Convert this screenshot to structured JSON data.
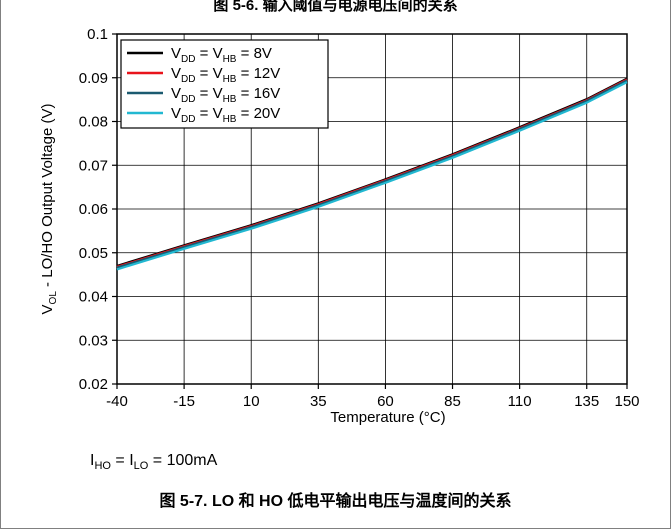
{
  "page": {
    "top_title": "图 5-6. 输入阈值与电源电压间的关系",
    "conditions": {
      "i1": "I",
      "s1": "HO",
      "eq": " = ",
      "i2": "I",
      "s2": "LO",
      "val": " = 100mA"
    },
    "caption": "图 5-7. LO 和 HO 低电平输出电压与温度间的关系"
  },
  "colors": {
    "axis": "#000000",
    "grid": "#000000",
    "series": [
      "#000000",
      "#e8141c",
      "#1b5a70",
      "#22b8d1"
    ]
  },
  "chart_data": {
    "type": "line",
    "xlabel": "Temperature (°C)",
    "ylabel_parts": [
      "V",
      "OL",
      " - LO/HO Output Voltage (V)"
    ],
    "xlim": [
      -40,
      150
    ],
    "ylim": [
      0.02,
      0.1
    ],
    "x_ticks": [
      -40,
      -15,
      10,
      35,
      60,
      85,
      110,
      135,
      150
    ],
    "x_tick_labels": [
      "-40",
      "-15",
      "10",
      "35",
      "60",
      "85",
      "110",
      "135",
      "150"
    ],
    "y_ticks": [
      0.02,
      0.03,
      0.04,
      0.05,
      0.06,
      0.07,
      0.08,
      0.09,
      0.1
    ],
    "y_tick_labels": [
      "0.02",
      "0.03",
      "0.04",
      "0.05",
      "0.06",
      "0.07",
      "0.08",
      "0.09",
      "0.1"
    ],
    "grid": true,
    "legend_position": "top-left",
    "x": [
      -40,
      -15,
      10,
      35,
      60,
      85,
      110,
      135,
      150
    ],
    "series": [
      {
        "legend": [
          "V",
          "DD",
          " = V",
          "HB",
          " = 8V"
        ],
        "values": [
          0.047,
          0.0517,
          0.0563,
          0.0613,
          0.0668,
          0.0725,
          0.0787,
          0.0851,
          0.0898
        ]
      },
      {
        "legend": [
          "V",
          "DD",
          " = V",
          "HB",
          " = 12V"
        ],
        "values": [
          0.0468,
          0.0515,
          0.0561,
          0.0611,
          0.0666,
          0.0723,
          0.0785,
          0.0849,
          0.0896
        ]
      },
      {
        "legend": [
          "V",
          "DD",
          " = V",
          "HB",
          " = 16V"
        ],
        "values": [
          0.0466,
          0.0513,
          0.0559,
          0.0609,
          0.0664,
          0.0721,
          0.0783,
          0.0847,
          0.0894
        ]
      },
      {
        "legend": [
          "V",
          "DD",
          " = V",
          "HB",
          " = 20V"
        ],
        "values": [
          0.0462,
          0.0509,
          0.0555,
          0.0605,
          0.066,
          0.0717,
          0.0779,
          0.0843,
          0.089
        ]
      }
    ]
  }
}
